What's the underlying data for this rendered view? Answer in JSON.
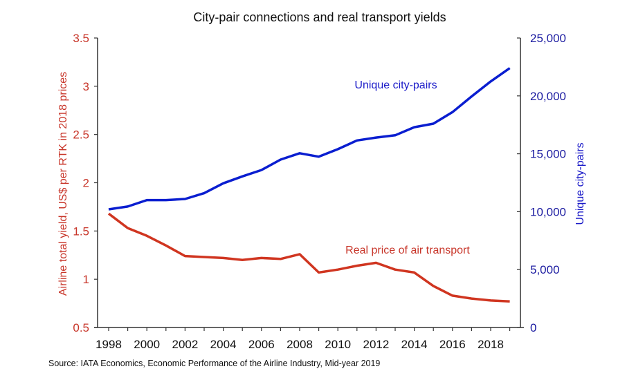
{
  "chart_data": {
    "type": "line",
    "title": "City-pair connections and real transport yields",
    "x": [
      1998,
      1999,
      2000,
      2001,
      2002,
      2003,
      2004,
      2005,
      2006,
      2007,
      2008,
      2009,
      2010,
      2011,
      2012,
      2013,
      2014,
      2015,
      2016,
      2017,
      2018,
      2019
    ],
    "x_ticks": [
      "1998",
      "2000",
      "2002",
      "2004",
      "2006",
      "2008",
      "2010",
      "2012",
      "2014",
      "2016",
      "2018"
    ],
    "xlim": [
      1998,
      2019
    ],
    "y_left": {
      "label": "Airline total yield, US$ per RTK in 2018 prices",
      "ylim": [
        0.5,
        3.5
      ],
      "ticks": [
        "0.5",
        "1",
        "1.5",
        "2",
        "2.5",
        "3",
        "3.5"
      ],
      "color": "#c8362a"
    },
    "y_right": {
      "label": "Unique city-pairs",
      "ylim": [
        0,
        25000
      ],
      "ticks": [
        "0",
        "5,000",
        "10,000",
        "15,000",
        "20,000",
        "25,000"
      ],
      "color": "#1a1ac8"
    },
    "series": [
      {
        "name": "Real price of air transport",
        "axis": "left",
        "color": "#d03520",
        "values": [
          1.68,
          1.53,
          1.45,
          1.35,
          1.24,
          1.23,
          1.22,
          1.2,
          1.22,
          1.21,
          1.26,
          1.07,
          1.1,
          1.14,
          1.17,
          1.1,
          1.07,
          0.93,
          0.83,
          0.8,
          0.78,
          0.77
        ]
      },
      {
        "name": "Unique city-pairs",
        "axis": "right",
        "color": "#0a1ed0",
        "values": [
          10200,
          10450,
          11000,
          11000,
          11100,
          11600,
          12450,
          13050,
          13600,
          14500,
          15050,
          14750,
          15400,
          16150,
          16400,
          16600,
          17300,
          17600,
          18600,
          19950,
          21250,
          22400
        ]
      }
    ],
    "annotations": [
      {
        "text": "Unique city-pairs",
        "series": "Unique city-pairs"
      },
      {
        "text": "Real price of air transport",
        "series": "Real price of air transport"
      }
    ],
    "grid": false,
    "legend": "none",
    "source": "Source: IATA Economics, Economic Performance of the Airline Industry, Mid-year 2019"
  }
}
